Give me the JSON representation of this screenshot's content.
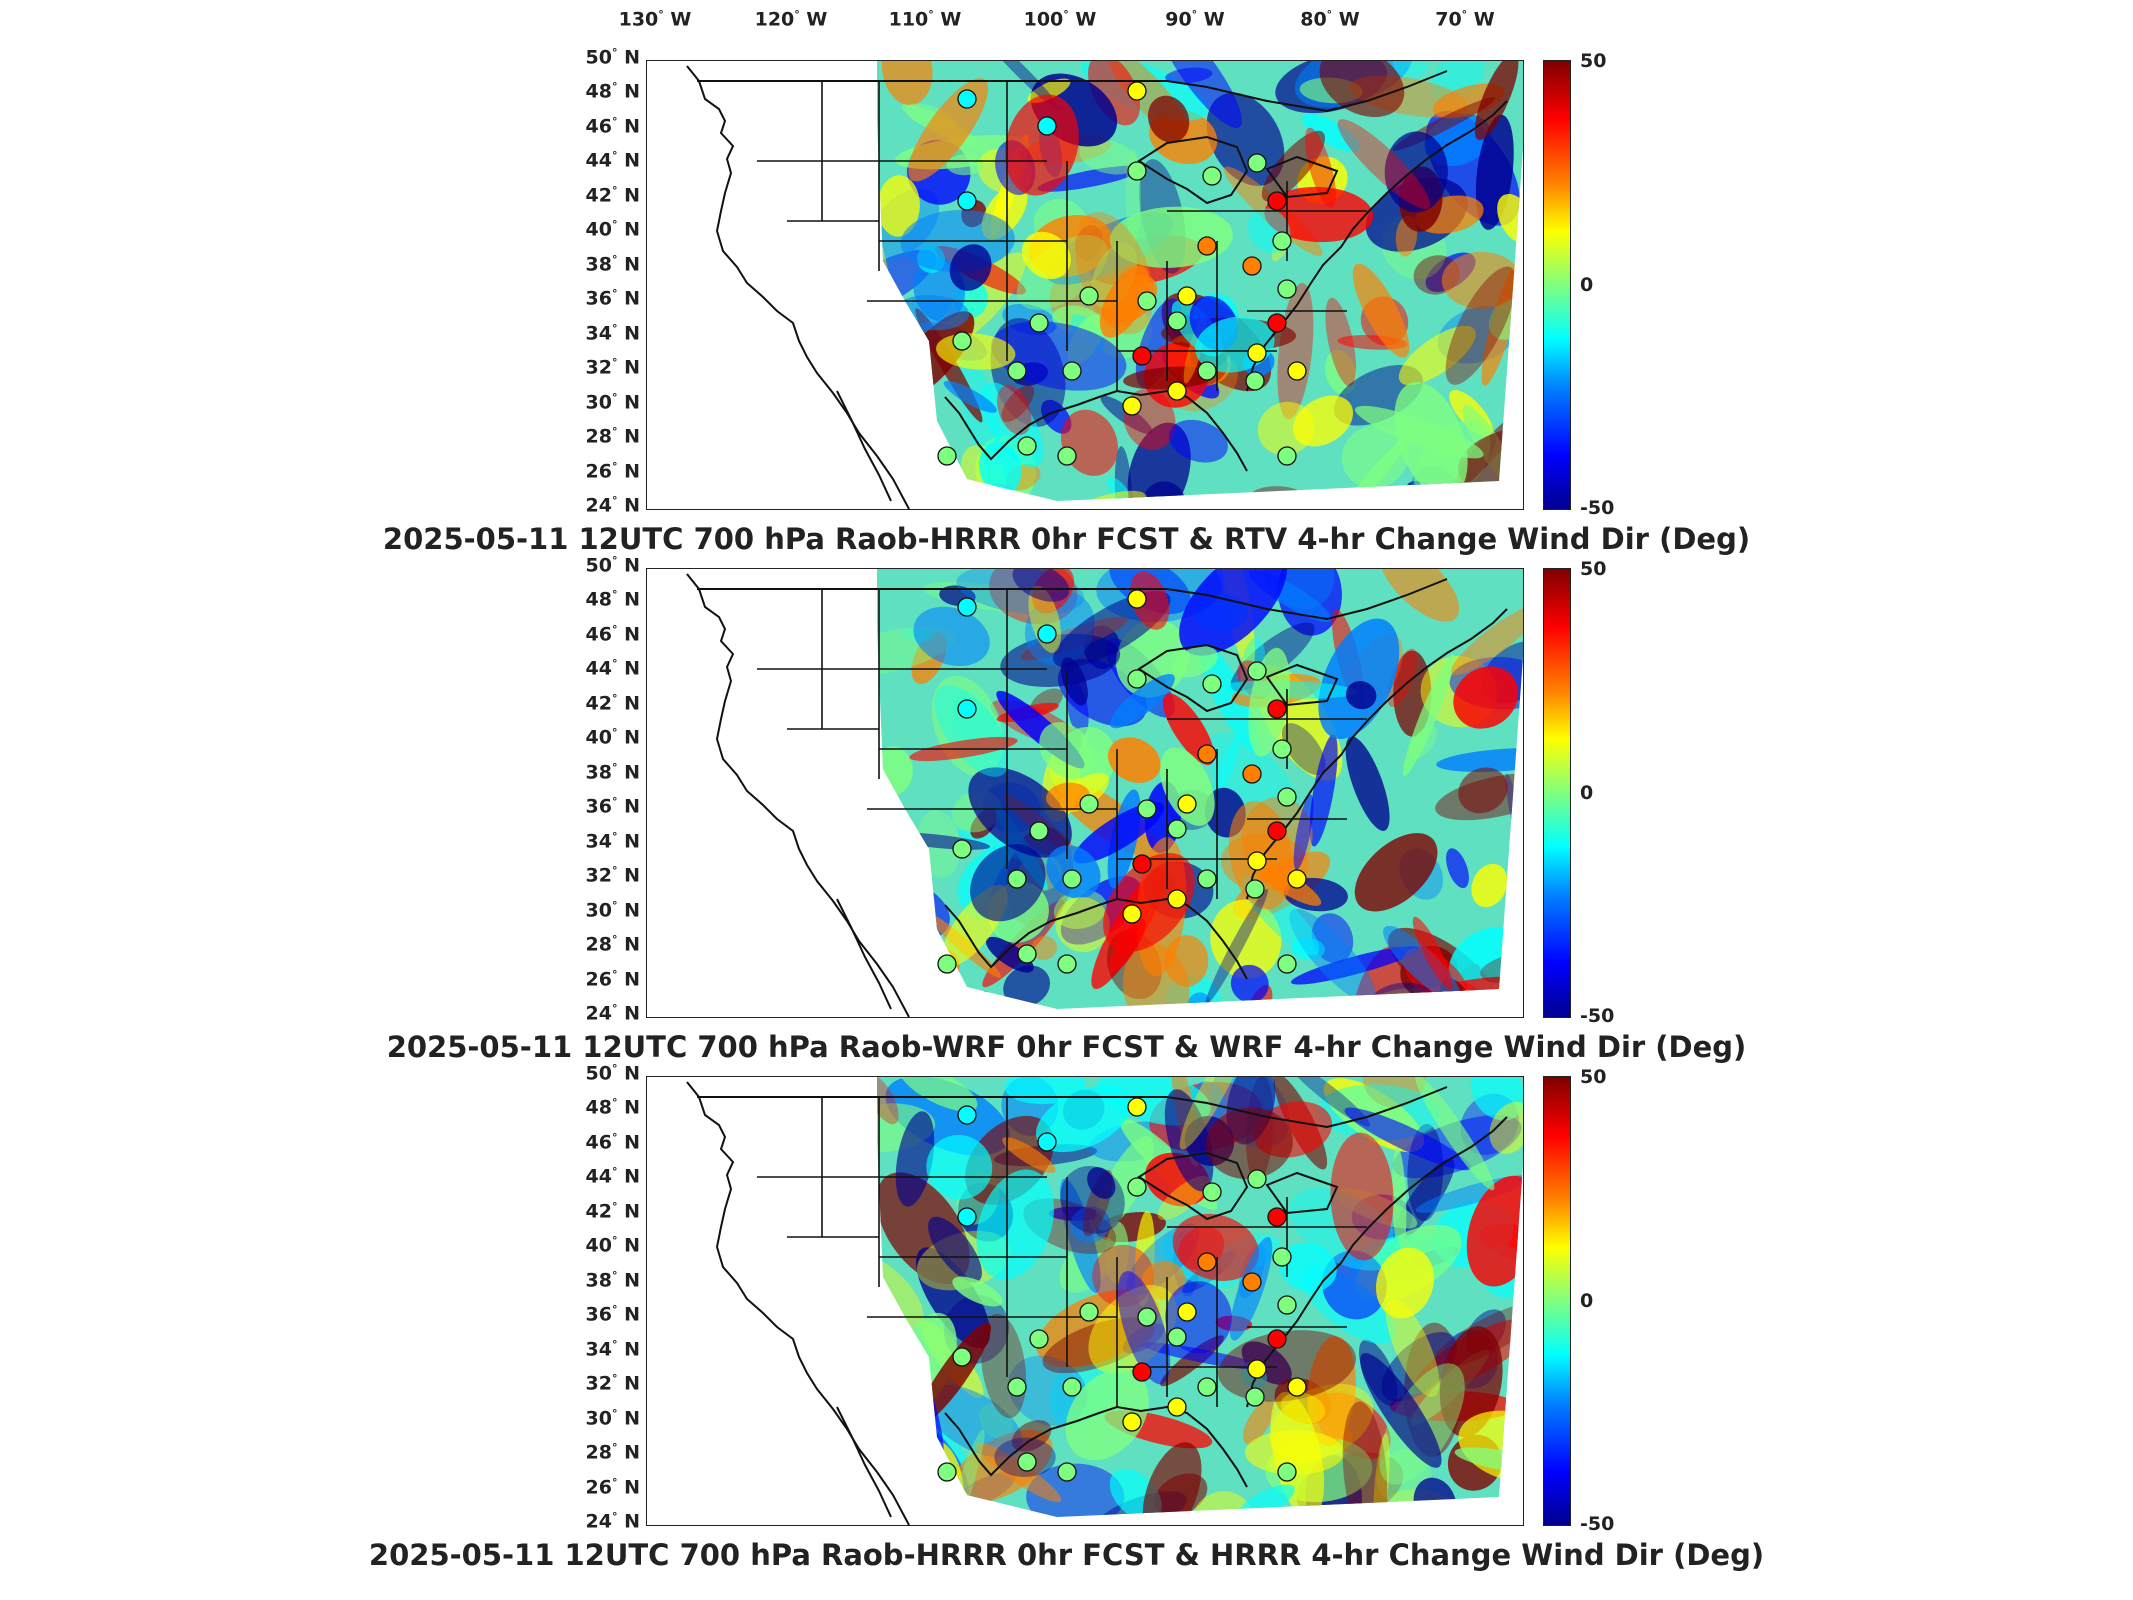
{
  "lon_labels": [
    {
      "deg": "130",
      "hemi": "W"
    },
    {
      "deg": "120",
      "hemi": "W"
    },
    {
      "deg": "110",
      "hemi": "W"
    },
    {
      "deg": "100",
      "hemi": "W"
    },
    {
      "deg": "90",
      "hemi": "W"
    },
    {
      "deg": "80",
      "hemi": "W"
    },
    {
      "deg": "70",
      "hemi": "W"
    }
  ],
  "lat_labels": [
    {
      "deg": "50",
      "hemi": "N"
    },
    {
      "deg": "48",
      "hemi": "N"
    },
    {
      "deg": "46",
      "hemi": "N"
    },
    {
      "deg": "44",
      "hemi": "N"
    },
    {
      "deg": "42",
      "hemi": "N"
    },
    {
      "deg": "40",
      "hemi": "N"
    },
    {
      "deg": "38",
      "hemi": "N"
    },
    {
      "deg": "36",
      "hemi": "N"
    },
    {
      "deg": "34",
      "hemi": "N"
    },
    {
      "deg": "32",
      "hemi": "N"
    },
    {
      "deg": "30",
      "hemi": "N"
    },
    {
      "deg": "28",
      "hemi": "N"
    },
    {
      "deg": "26",
      "hemi": "N"
    },
    {
      "deg": "24",
      "hemi": "N"
    }
  ],
  "colorbar": {
    "max": "50",
    "mid": "0",
    "min": "-50",
    "colormap": "jet"
  },
  "panels": [
    {
      "title": "2025-05-11 12UTC 700 hPa Raob-HRRR 0hr FCST & RTV 4-hr Change Wind Dir (Deg)"
    },
    {
      "title": "2025-05-11 12UTC 700 hPa Raob-WRF 0hr FCST & WRF 4-hr Change Wind Dir (Deg)"
    },
    {
      "title": "2025-05-11 12UTC 700 hPa Raob-HRRR 0hr FCST & HRRR 4-hr Change Wind Dir (Deg)"
    }
  ]
}
